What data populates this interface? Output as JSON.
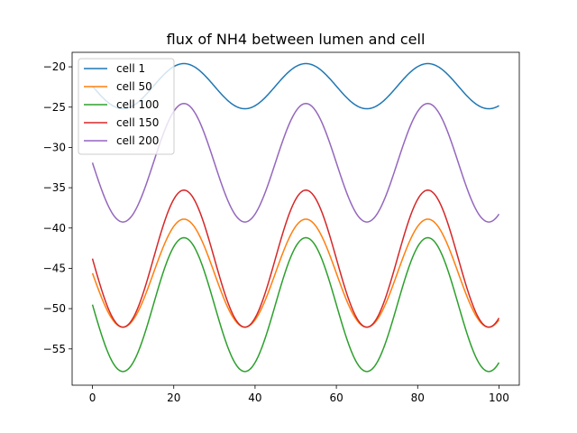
{
  "chart_data": {
    "type": "line",
    "title": "flux of NH4 between lumen and cell",
    "xlabel": "",
    "ylabel": "",
    "xlim": [
      -5,
      105
    ],
    "ylim": [
      -59.5,
      -18.2
    ],
    "x_ticks": [
      0,
      20,
      40,
      60,
      80,
      100
    ],
    "y_ticks": [
      -55,
      -50,
      -45,
      -40,
      -35,
      -30,
      -25,
      -20
    ],
    "grid": false,
    "legend_position": "top-left",
    "x_range": [
      0,
      100
    ],
    "series": [
      {
        "name": "cell 1",
        "color": "#1f77b4",
        "mean": -22.4,
        "amplitude": 2.8,
        "period": 30,
        "peak_x": 22.5
      },
      {
        "name": "cell 50",
        "color": "#ff7f0e",
        "mean": -45.6,
        "amplitude": 6.7,
        "period": 30,
        "peak_x": 22.5
      },
      {
        "name": "cell 100",
        "color": "#2ca02c",
        "mean": -49.5,
        "amplitude": 8.3,
        "period": 30,
        "peak_x": 22.5
      },
      {
        "name": "cell 150",
        "color": "#d62728",
        "mean": -43.8,
        "amplitude": 8.5,
        "period": 30,
        "peak_x": 22.5
      },
      {
        "name": "cell 200",
        "color": "#9467bd",
        "mean": -31.9,
        "amplitude": 7.35,
        "period": 30,
        "peak_x": 22.5
      }
    ]
  }
}
